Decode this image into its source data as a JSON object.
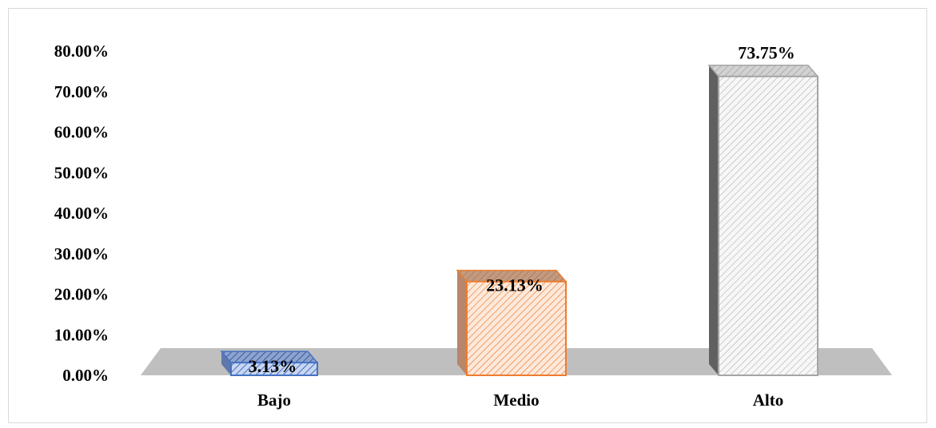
{
  "chart_data": {
    "type": "bar",
    "categories": [
      "Bajo",
      "Medio",
      "Alto"
    ],
    "values": [
      3.13,
      23.13,
      73.75
    ],
    "data_labels": [
      "3.13%",
      "23.13%",
      "73.75%"
    ],
    "y_ticks": [
      "0.00%",
      "10.00%",
      "20.00%",
      "30.00%",
      "40.00%",
      "50.00%",
      "60.00%",
      "70.00%",
      "80.00%"
    ],
    "ylim": [
      0,
      80
    ],
    "grid": false,
    "legend": "none",
    "style": "3d-column",
    "colors": {
      "Bajo": {
        "fill": "#a9bde6",
        "top": "#7d93c4",
        "side": "#5f77ab",
        "stroke": "#4472c4"
      },
      "Medio": {
        "fill": "#f8d3b8",
        "top": "#c0977a",
        "side": "#b8866a",
        "stroke": "#ed7d31"
      },
      "Alto": {
        "fill": "#f4f4f4",
        "top": "#c8c8c8",
        "side": "#606060",
        "stroke": "#a5a5a5"
      },
      "floor": "#bfbfbf"
    }
  }
}
